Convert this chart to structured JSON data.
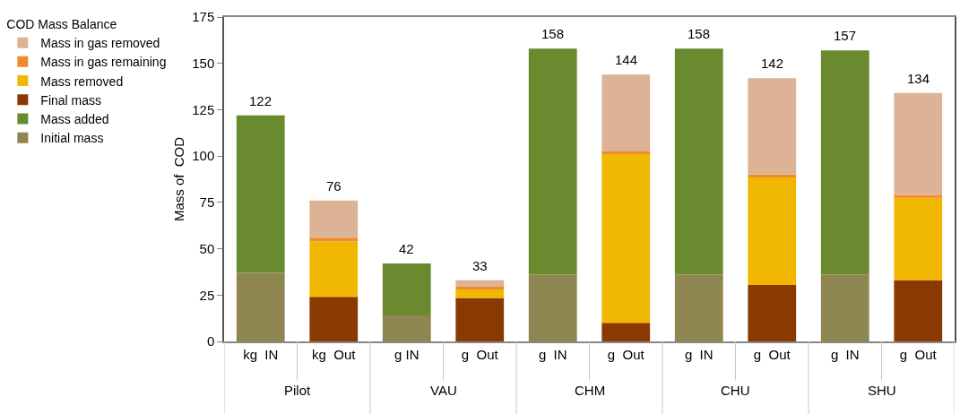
{
  "chart_data": {
    "type": "bar",
    "stacked": true,
    "ylabel": "Mass of  COD",
    "legend_title": "COD Mass Balance",
    "legend": "left",
    "grid": false,
    "categories": [
      "kg  IN",
      "kg  Out",
      "g IN",
      "g  Out",
      "g  IN",
      "g  Out",
      "g  IN",
      "g  Out",
      "g  IN",
      "g  Out"
    ],
    "annotations": [
      "Pilot",
      "VAU",
      "CHM",
      "CHU",
      "SHU"
    ],
    "ylim": [
      0,
      175
    ],
    "yticks": [
      0,
      25,
      50,
      75,
      100,
      125,
      150,
      175
    ],
    "series": [
      {
        "name": "Initial mass",
        "color": "#8f8550",
        "values": [
          37,
          null,
          14,
          null,
          36,
          null,
          36,
          null,
          36,
          null
        ]
      },
      {
        "name": "Mass added",
        "color": "#6a8a30",
        "values": [
          85,
          null,
          28,
          null,
          122,
          null,
          122,
          null,
          121,
          null
        ]
      },
      {
        "name": "Final mass",
        "color": "#8a3a00",
        "values": [
          null,
          24,
          null,
          23.5,
          null,
          10,
          null,
          30.5,
          null,
          33
        ]
      },
      {
        "name": "Mass removed",
        "color": "#f0b800",
        "values": [
          null,
          30,
          null,
          4.5,
          null,
          91,
          null,
          58,
          null,
          44.5
        ]
      },
      {
        "name": "Mass in gas remaining",
        "color": "#f08a30",
        "values": [
          null,
          2,
          null,
          1.5,
          null,
          1.5,
          null,
          1.5,
          null,
          1.5
        ]
      },
      {
        "name": "Mass in gas removed",
        "color": "#dcb394",
        "values": [
          null,
          20,
          null,
          3.5,
          null,
          41.5,
          null,
          52,
          null,
          55
        ]
      }
    ],
    "totals": [
      "122",
      "76",
      "42",
      "33",
      "158",
      "144",
      "158",
      "142",
      "157",
      "134"
    ]
  }
}
